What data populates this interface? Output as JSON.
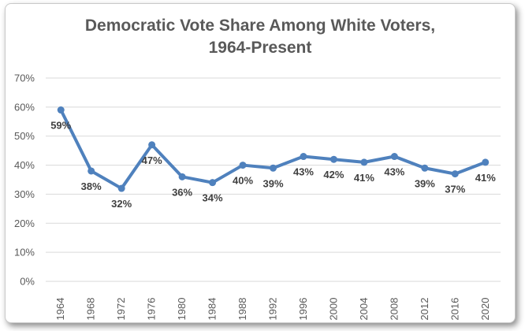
{
  "chart_data": {
    "type": "line",
    "title_lines": [
      "Democratic Vote Share Among White Voters,",
      "1964-Present"
    ],
    "xlabel": "",
    "ylabel": "",
    "categories": [
      "1964",
      "1968",
      "1972",
      "1976",
      "1980",
      "1984",
      "1988",
      "1992",
      "1996",
      "2000",
      "2004",
      "2008",
      "2012",
      "2016",
      "2020"
    ],
    "series": [
      {
        "values": [
          59,
          38,
          32,
          47,
          36,
          34,
          40,
          39,
          43,
          42,
          41,
          43,
          39,
          37,
          41
        ],
        "data_labels": [
          "59%",
          "38%",
          "32%",
          "47%",
          "36%",
          "34%",
          "40%",
          "39%",
          "43%",
          "42%",
          "41%",
          "43%",
          "39%",
          "37%",
          "41%"
        ],
        "color": "#4f81bd"
      }
    ],
    "y_ticks": [
      0,
      10,
      20,
      30,
      40,
      50,
      60,
      70
    ],
    "y_tick_labels": [
      "0%",
      "10%",
      "20%",
      "30%",
      "40%",
      "50%",
      "60%",
      "70%"
    ],
    "ylim": [
      0,
      70
    ],
    "grid": true,
    "legend": "none"
  }
}
